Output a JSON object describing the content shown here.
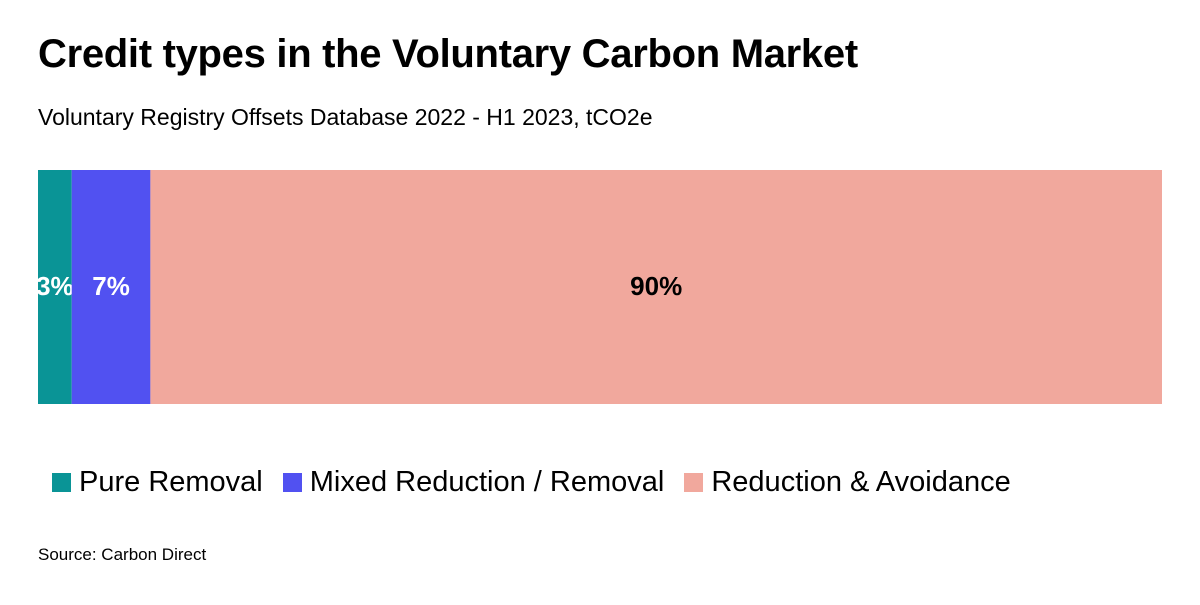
{
  "title": "Credit types in the Voluntary Carbon Market",
  "subtitle": "Voluntary Registry Offsets Database 2022 - H1 2023, tCO2e",
  "source": "Source: Carbon Direct",
  "chart_data": {
    "type": "bar",
    "orientation": "horizontal",
    "stacked": true,
    "normalized": true,
    "categories": [
      ""
    ],
    "series": [
      {
        "name": "Pure Removal",
        "values": [
          3
        ],
        "label": "3%",
        "color": "#0A9496",
        "label_color": "#FFFFFF"
      },
      {
        "name": "Mixed Reduction / Removal",
        "values": [
          7
        ],
        "label": "7%",
        "color": "#5151F1",
        "label_color": "#FFFFFF"
      },
      {
        "name": "Reduction & Avoidance",
        "values": [
          90
        ],
        "label": "90%",
        "color": "#F1A89D",
        "label_color": "#000000"
      }
    ],
    "xlim": [
      0,
      100
    ],
    "grid": false,
    "legend_position": "bottom"
  }
}
